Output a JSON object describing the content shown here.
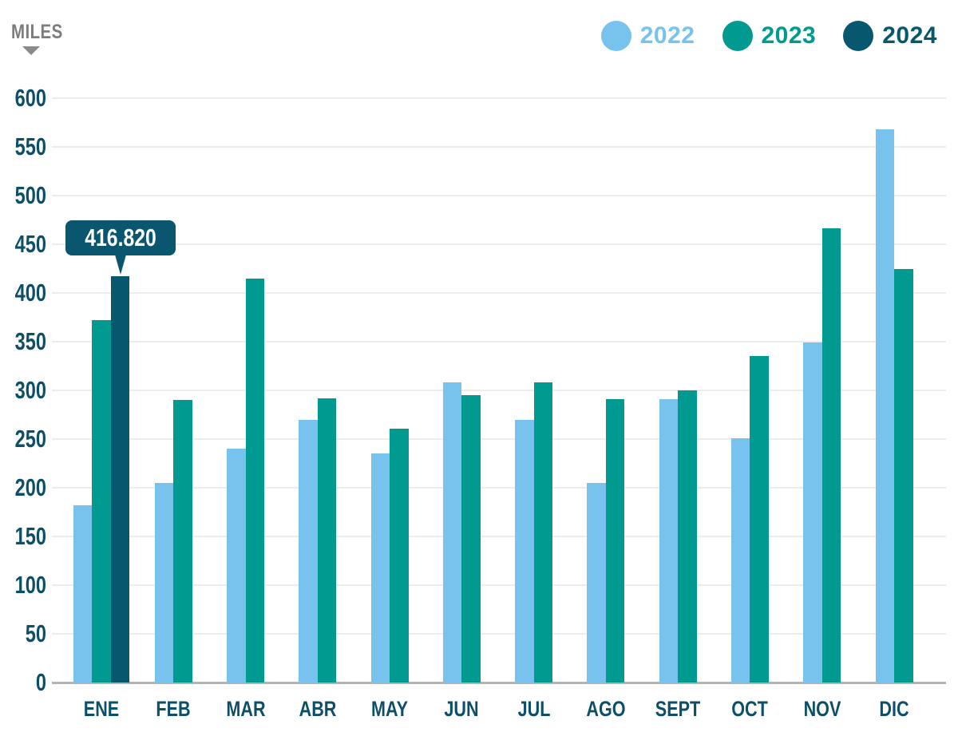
{
  "header": {
    "y_axis_unit_label": "MILES",
    "legend": [
      {
        "label": "2022",
        "color": "#77c3ee"
      },
      {
        "label": "2023",
        "color": "#019a90"
      },
      {
        "label": "2024",
        "color": "#07586f"
      }
    ]
  },
  "tooltip": {
    "value": "416.820",
    "series": "2024",
    "category": "ENE"
  },
  "colors": {
    "axis_text": "#0e4f68",
    "miles_label": "#7d7d7d",
    "gridline": "#ececec",
    "baseline": "#b3b3b3",
    "tooltip_bg": "#0b566f",
    "tooltip_text": "#ffffff"
  },
  "chart_data": {
    "type": "bar",
    "title": "",
    "xlabel": "",
    "ylabel": "MILES",
    "ylim": [
      0,
      600
    ],
    "yticks": [
      0,
      50,
      100,
      150,
      200,
      250,
      300,
      350,
      400,
      450,
      500,
      550,
      600
    ],
    "grid": true,
    "legend_position": "top-right",
    "categories": [
      "ENE",
      "FEB",
      "MAR",
      "ABR",
      "MAY",
      "JUN",
      "JUL",
      "AGO",
      "SEPT",
      "OCT",
      "NOV",
      "DIC"
    ],
    "series": [
      {
        "name": "2022",
        "color": "#77c3ee",
        "values": [
          182,
          205,
          240,
          270,
          235,
          308,
          270,
          205,
          291,
          251,
          349,
          568
        ]
      },
      {
        "name": "2023",
        "color": "#019a90",
        "values": [
          372,
          290,
          415,
          292,
          261,
          295,
          308,
          291,
          300,
          335,
          466,
          425
        ]
      },
      {
        "name": "2024",
        "color": "#07586f",
        "values": [
          416.82,
          null,
          null,
          null,
          null,
          null,
          null,
          null,
          null,
          null,
          null,
          null
        ]
      }
    ],
    "annotations": [
      {
        "series": "2024",
        "category": "ENE",
        "label": "416.820"
      }
    ]
  }
}
